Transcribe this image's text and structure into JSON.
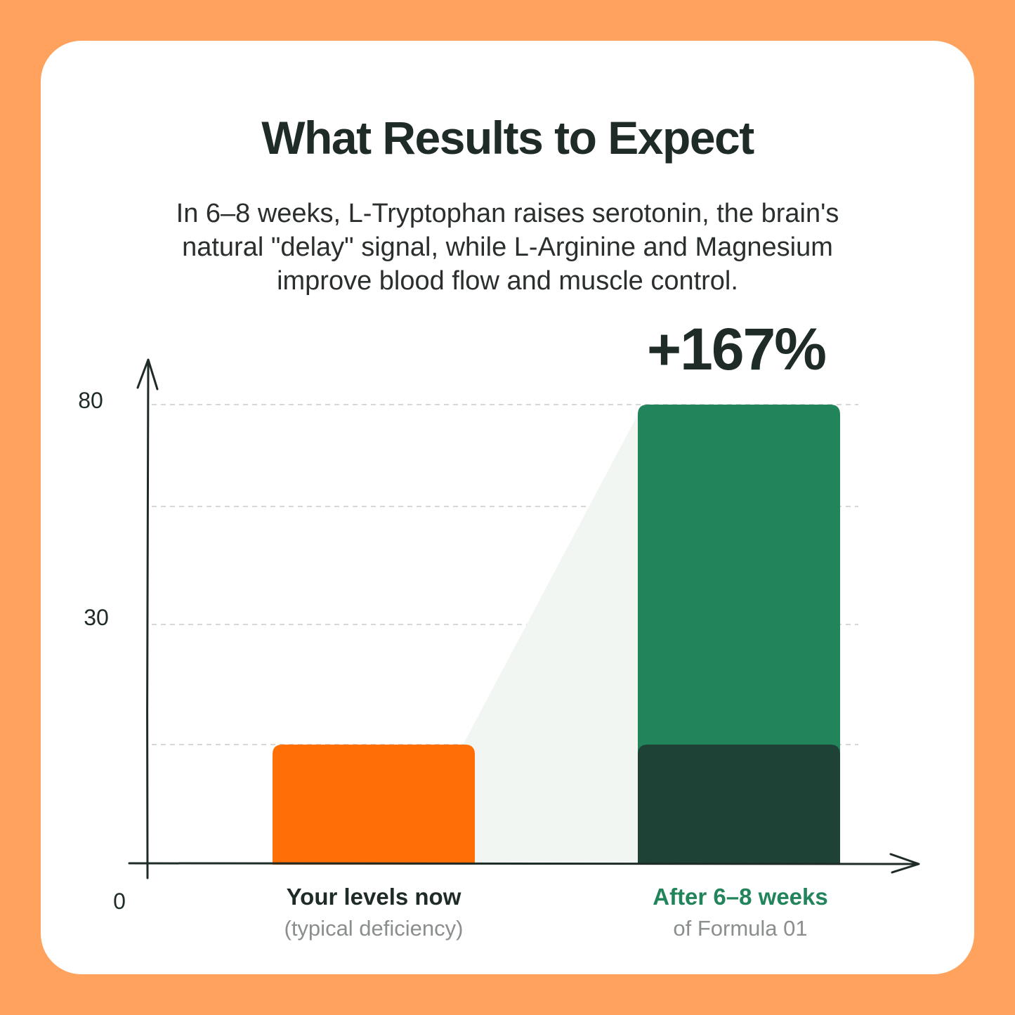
{
  "title": "What Results to Expect",
  "subtitle": "In 6–8 weeks, L-Tryptophan raises serotonin, the brain's natural \"delay\" signal, while L-Arginine and Magnesium improve blood flow and muscle control.",
  "colors": {
    "background": "#FFA25E",
    "before_bar": "#FF6F06",
    "after_bar": "#22845A",
    "after_base": "#1E4236",
    "after_label": "#22845A",
    "axis": "#1F2B27"
  },
  "chart_data": {
    "type": "bar",
    "categories": [
      "Your levels now",
      "After 6–8 weeks"
    ],
    "category_sublabels": [
      "(typical deficiency)",
      "of Formula 01"
    ],
    "values": [
      30,
      80
    ],
    "baseline_within_after": 30,
    "annotation": "+167%",
    "y_ticks": [
      "0",
      "30",
      "80"
    ],
    "y_tick_values": [
      0,
      30,
      80
    ],
    "ylim": [
      0,
      80
    ],
    "grid": true
  }
}
